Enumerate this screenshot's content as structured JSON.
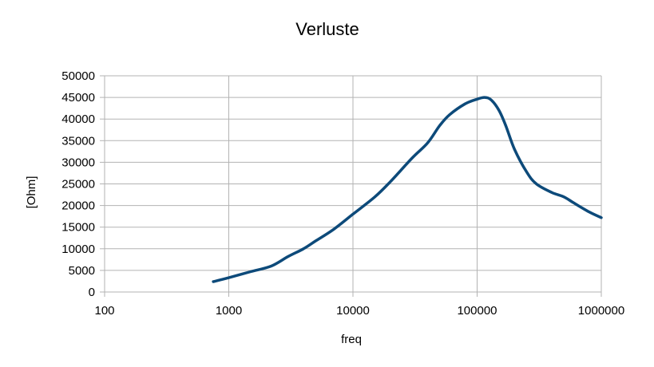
{
  "chart_data": {
    "type": "line",
    "title": "Verluste",
    "xlabel": "freq",
    "ylabel": "[Ohm]",
    "xscale": "log",
    "xlim": [
      100,
      1000000
    ],
    "ylim": [
      0,
      50000
    ],
    "x_ticks": [
      "100",
      "1000",
      "10000",
      "100000",
      "1000000"
    ],
    "y_ticks": [
      "0",
      "5000",
      "10000",
      "15000",
      "20000",
      "25000",
      "30000",
      "35000",
      "40000",
      "45000",
      "50000"
    ],
    "grid": true,
    "legend": "none",
    "colors": {
      "series": "#0d4a7a",
      "grid": "#b3b3b3",
      "axis": "#b3b3b3"
    },
    "series": [
      {
        "x": [
          750,
          1000,
          1500,
          2200,
          3000,
          4000,
          5000,
          7000,
          10000,
          15000,
          20000,
          30000,
          40000,
          50000,
          60000,
          80000,
          100000,
          115000,
          130000,
          150000,
          170000,
          200000,
          250000,
          300000,
          400000,
          500000,
          600000,
          800000,
          1000000
        ],
        "y": [
          2400,
          3300,
          4700,
          6000,
          8200,
          10000,
          11800,
          14500,
          18000,
          22000,
          25500,
          31000,
          34500,
          38500,
          41000,
          43500,
          44600,
          45000,
          44400,
          42000,
          38500,
          33000,
          27800,
          25000,
          23000,
          22000,
          20600,
          18500,
          17200
        ]
      }
    ]
  }
}
